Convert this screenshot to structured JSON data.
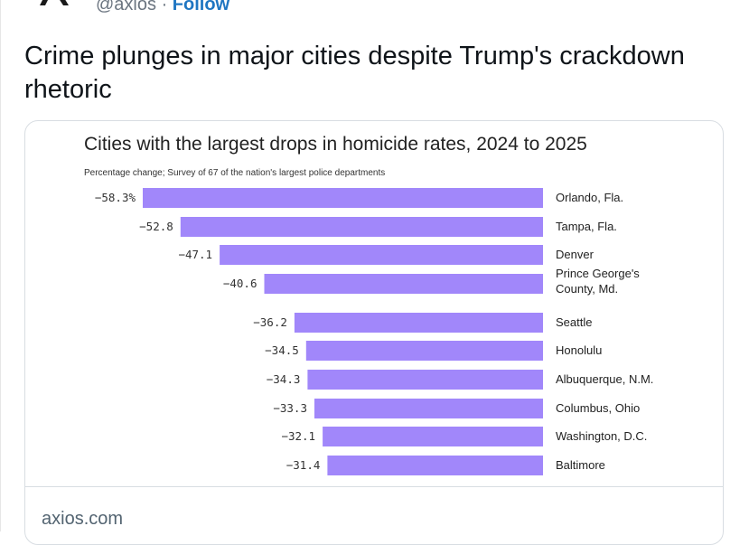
{
  "tweet": {
    "handle": "@axios",
    "separator": "·",
    "follow_label": "Follow",
    "text": "Crime plunges in major cities despite Trump's crackdown rhetoric"
  },
  "card": {
    "domain": "axios.com"
  },
  "colors": {
    "bar": "#a187fa",
    "follow": "#1f76c2",
    "text": "#0f1419"
  },
  "chart_data": {
    "type": "bar",
    "orientation": "horizontal",
    "title": "Cities with the largest drops in homicide rates, 2024 to 2025",
    "subtitle": "Percentage change; Survey of 67 of the nation's largest police departments",
    "xlim": [
      -58.3,
      0
    ],
    "categories": [
      [
        "Orlando, Fla."
      ],
      [
        "Tampa, Fla."
      ],
      [
        "Denver"
      ],
      [
        "Prince George's",
        "County, Md."
      ],
      [
        "Seattle"
      ],
      [
        "Honolulu"
      ],
      [
        "Albuquerque, N.M."
      ],
      [
        "Columbus, Ohio"
      ],
      [
        "Washington, D.C."
      ],
      [
        "Baltimore"
      ]
    ],
    "values": [
      -58.3,
      -52.8,
      -47.1,
      -40.6,
      -36.2,
      -34.5,
      -34.3,
      -33.3,
      -32.1,
      -31.4
    ],
    "value_labels": [
      "−58.3%",
      "−52.8",
      "−47.1",
      "−40.6",
      "−36.2",
      "−34.5",
      "−34.3",
      "−33.3",
      "−32.1",
      "−31.4"
    ]
  }
}
